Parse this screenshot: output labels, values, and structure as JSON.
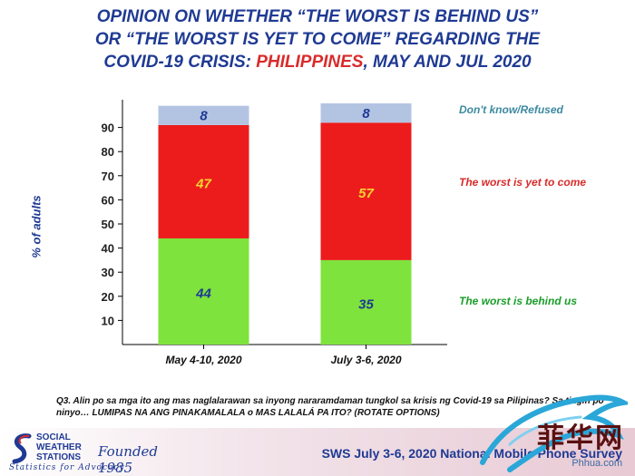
{
  "title": {
    "line1": "OPINION ON WHETHER “THE WORST IS BEHIND US”",
    "line2": "OR “THE WORST IS YET TO COME” REGARDING THE",
    "line3_prefix": "COVID-19 CRISIS:  ",
    "line3_highlight": "PHILIPPINES",
    "line3_suffix": ", MAY AND JUL 2020"
  },
  "chart_data": {
    "type": "bar",
    "stacked": true,
    "ylabel": "% of adults",
    "ylim": [
      0,
      100
    ],
    "yticks": [
      10,
      20,
      30,
      40,
      50,
      60,
      70,
      80,
      90
    ],
    "grid": false,
    "categories": [
      "May 4-10, 2020",
      "July 3-6, 2020"
    ],
    "series": [
      {
        "name": "The worst is behind us",
        "values": [
          44,
          35
        ],
        "color": "#7ee33c",
        "label_color": "#1f3a93"
      },
      {
        "name": "The worst is yet to come",
        "values": [
          47,
          57
        ],
        "color": "#ec1c1c",
        "label_color": "#f5d232"
      },
      {
        "name": "Don't know/Refused",
        "values": [
          8,
          8
        ],
        "color": "#b3c4e3",
        "label_color": "#1f3a93"
      }
    ],
    "legend_placement": "right",
    "legend_colors": [
      "#1a9e2a",
      "#d92b2b",
      "#3c8aa0"
    ]
  },
  "question": "Q3. Alin po sa mga ito ang mas naglalarawan sa inyong nararamdaman tungkol sa krisis ng Covid-19 sa Pilipinas? Sa tingin po ninyo… LUMIPAS NA ANG PINAKAMALALA o MAS LALALÁ PA ITO? (ROTATE OPTIONS)",
  "logo": {
    "line1": "SOCIAL",
    "line2": "WEATHER",
    "line3": "STATIONS",
    "founded": "Founded 1985",
    "tagline": "Statistics for Advocacy"
  },
  "source": "SWS July 3-6, 2020 National Mobile Phone Survey",
  "watermark": {
    "text": "菲华网",
    "url": "Phhua.com"
  }
}
